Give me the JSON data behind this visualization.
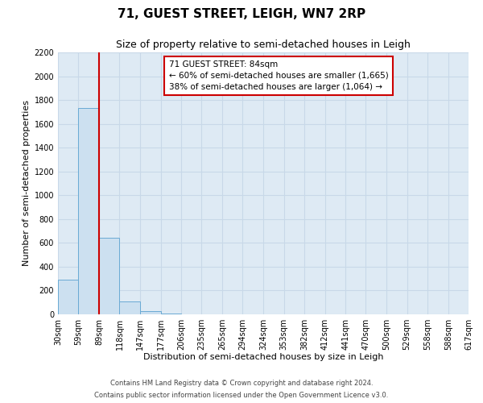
{
  "title": "71, GUEST STREET, LEIGH, WN7 2RP",
  "subtitle": "Size of property relative to semi-detached houses in Leigh",
  "xlabel": "Distribution of semi-detached houses by size in Leigh",
  "ylabel": "Number of semi-detached properties",
  "bar_edges": [
    30,
    59,
    89,
    118,
    147,
    177,
    206,
    235,
    265,
    294,
    324,
    353,
    382,
    412,
    441,
    470,
    500,
    529,
    558,
    588,
    617
  ],
  "bar_heights": [
    290,
    1730,
    640,
    110,
    30,
    5,
    0,
    0,
    0,
    0,
    0,
    0,
    0,
    0,
    0,
    0,
    0,
    0,
    0,
    0
  ],
  "bar_color": "#cce0f0",
  "bar_edgecolor": "#6aaad4",
  "property_line_x": 89,
  "property_line_color": "#cc0000",
  "ylim": [
    0,
    2200
  ],
  "yticks": [
    0,
    200,
    400,
    600,
    800,
    1000,
    1200,
    1400,
    1600,
    1800,
    2000,
    2200
  ],
  "annotation_title": "71 GUEST STREET: 84sqm",
  "annotation_line1": "← 60% of semi-detached houses are smaller (1,665)",
  "annotation_line2": "38% of semi-detached houses are larger (1,064) →",
  "footnote1": "Contains HM Land Registry data © Crown copyright and database right 2024.",
  "footnote2": "Contains public sector information licensed under the Open Government Licence v3.0.",
  "grid_color": "#c8d8e8",
  "background_color": "#deeaf4",
  "title_fontsize": 11,
  "subtitle_fontsize": 9,
  "xlabel_fontsize": 8,
  "ylabel_fontsize": 8,
  "tick_fontsize": 7,
  "annot_fontsize": 7.5,
  "footnote_fontsize": 6
}
